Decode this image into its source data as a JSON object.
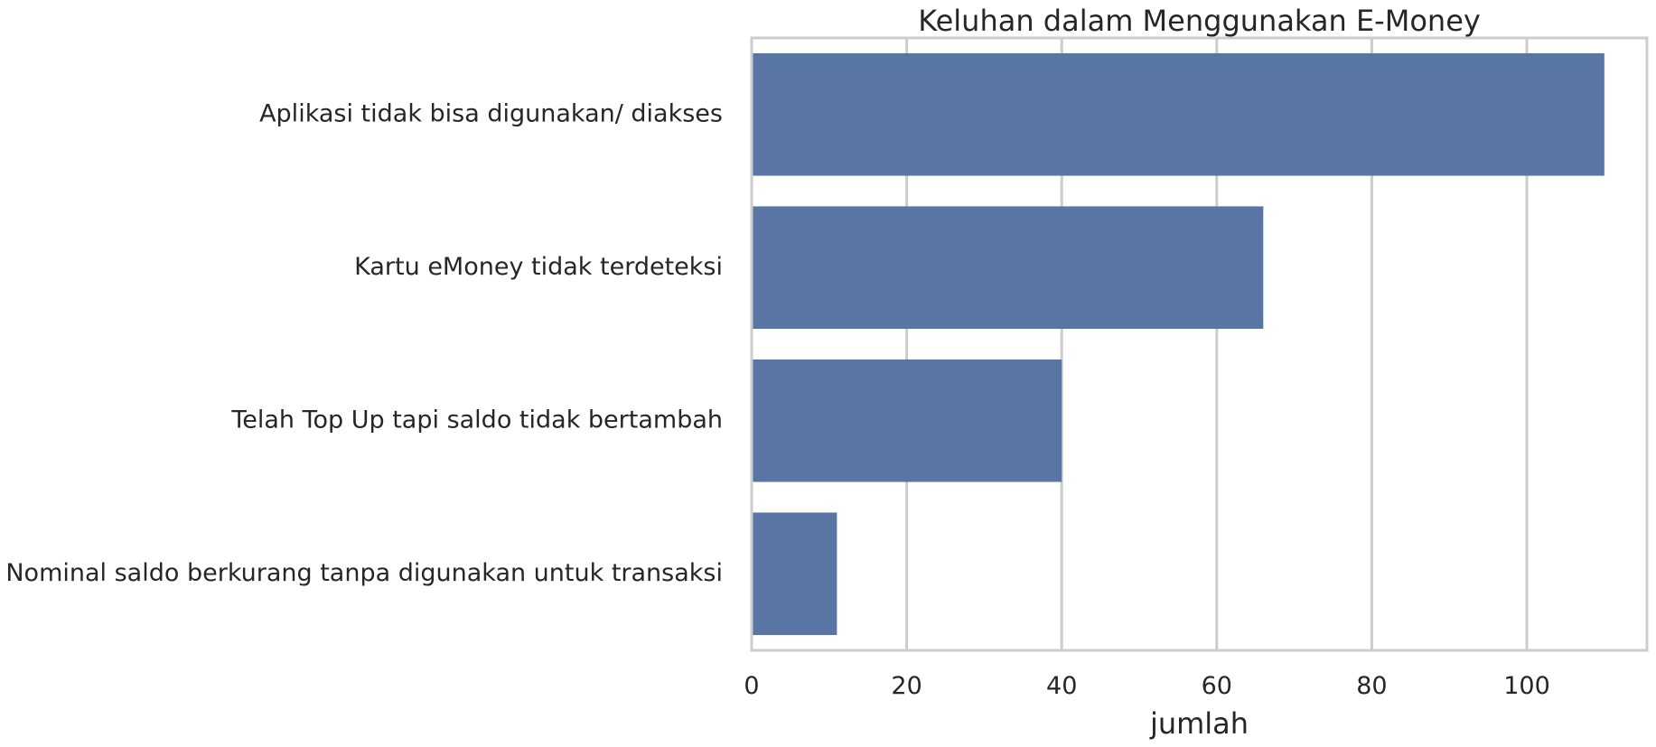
{
  "chart_data": {
    "type": "bar",
    "orientation": "horizontal",
    "title": "Keluhan dalam Menggunakan E-Money",
    "xlabel": "jumlah",
    "ylabel": "",
    "categories": [
      "Aplikasi tidak bisa digunakan/ diakses",
      "Kartu eMoney tidak terdeteksi",
      "Telah Top Up tapi saldo tidak bertambah",
      "Nominal saldo berkurang tanpa digunakan untuk transaksi"
    ],
    "values": [
      110,
      66,
      40,
      11
    ],
    "xlim": [
      0,
      115.5
    ],
    "xticks": [
      0,
      20,
      40,
      60,
      80,
      100
    ],
    "grid": true,
    "bar_color": "#5875a4",
    "grid_color": "#cccccc",
    "text_color": "#262626"
  }
}
